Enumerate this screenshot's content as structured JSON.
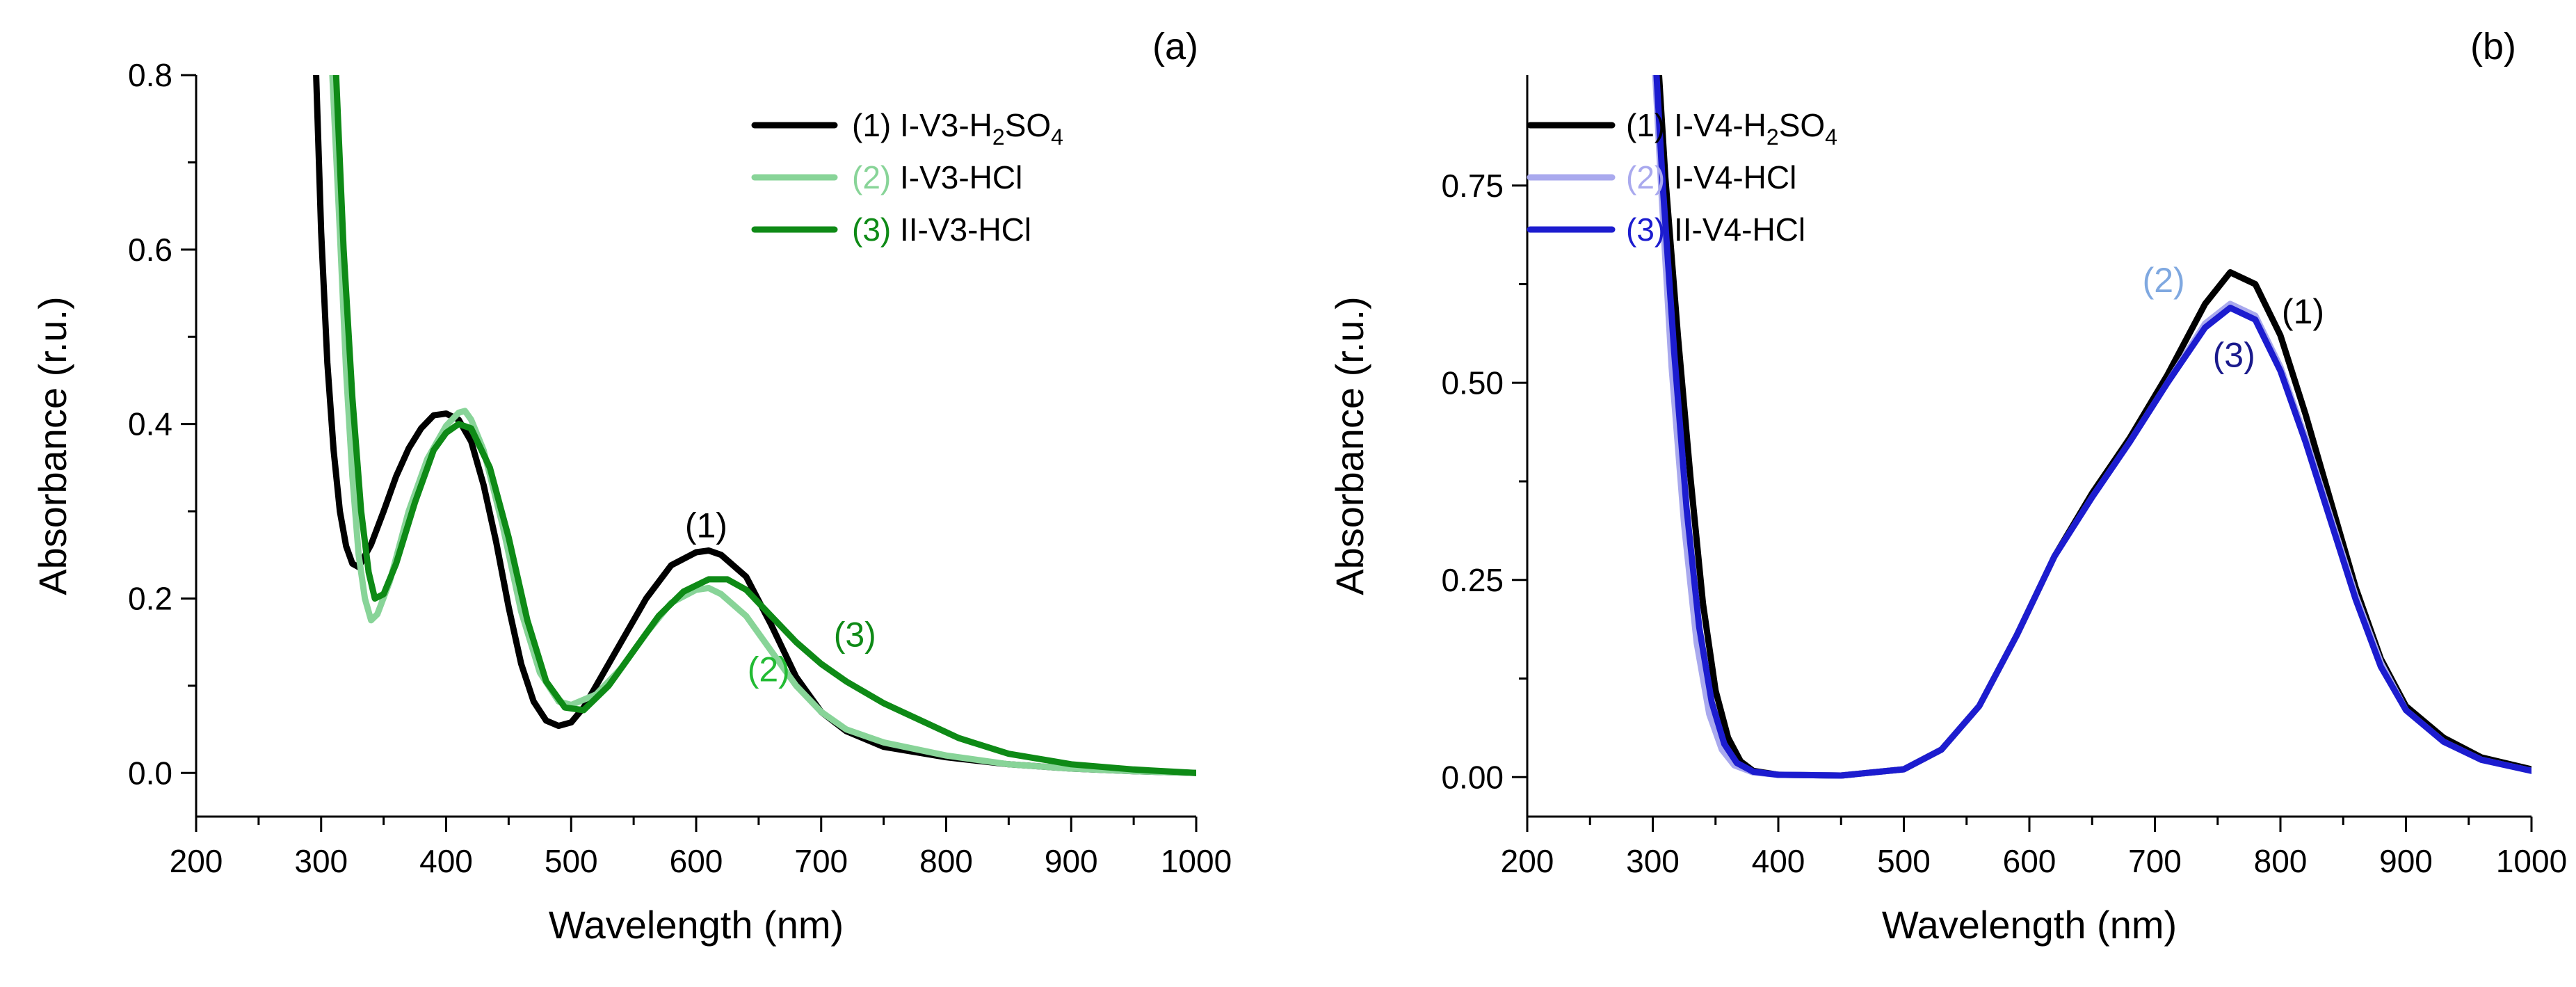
{
  "chart_data": [
    {
      "type": "line",
      "panel_label": "(a)",
      "xlabel": "Wavelength (nm)",
      "ylabel": "Absorbance (r.u.)",
      "xlim": [
        200,
        1000
      ],
      "ylim": [
        -0.05,
        0.8
      ],
      "x_ticks": [
        200,
        300,
        400,
        500,
        600,
        700,
        800,
        900,
        1000
      ],
      "y_ticks": [
        {
          "value": 0.0,
          "label": "0.0"
        },
        {
          "value": 0.2,
          "label": "0.2"
        },
        {
          "value": 0.4,
          "label": "0.4"
        },
        {
          "value": 0.6,
          "label": "0.6"
        },
        {
          "value": 0.8,
          "label": "0.8"
        }
      ],
      "legend_position": "top-right",
      "series": [
        {
          "name": "(1) I-V3-H2SO4",
          "legend_num": "(1)",
          "legend_prefix": "I-V3-H",
          "legend_sub1": "2",
          "legend_mid": "SO",
          "legend_sub2": "4",
          "color": "#000000",
          "points": [
            [
              296,
              0.8
            ],
            [
              300,
              0.62
            ],
            [
              305,
              0.47
            ],
            [
              310,
              0.37
            ],
            [
              315,
              0.3
            ],
            [
              320,
              0.26
            ],
            [
              325,
              0.24
            ],
            [
              330,
              0.236
            ],
            [
              340,
              0.262
            ],
            [
              350,
              0.3
            ],
            [
              360,
              0.34
            ],
            [
              370,
              0.372
            ],
            [
              380,
              0.395
            ],
            [
              390,
              0.41
            ],
            [
              400,
              0.412
            ],
            [
              410,
              0.405
            ],
            [
              420,
              0.38
            ],
            [
              430,
              0.33
            ],
            [
              440,
              0.265
            ],
            [
              450,
              0.19
            ],
            [
              460,
              0.125
            ],
            [
              470,
              0.082
            ],
            [
              480,
              0.06
            ],
            [
              490,
              0.054
            ],
            [
              500,
              0.058
            ],
            [
              510,
              0.075
            ],
            [
              520,
              0.1
            ],
            [
              540,
              0.15
            ],
            [
              560,
              0.2
            ],
            [
              580,
              0.238
            ],
            [
              600,
              0.253
            ],
            [
              610,
              0.255
            ],
            [
              620,
              0.25
            ],
            [
              640,
              0.225
            ],
            [
              660,
              0.17
            ],
            [
              680,
              0.11
            ],
            [
              700,
              0.07
            ],
            [
              720,
              0.048
            ],
            [
              750,
              0.03
            ],
            [
              800,
              0.018
            ],
            [
              850,
              0.01
            ],
            [
              900,
              0.005
            ],
            [
              950,
              0.002
            ],
            [
              1000,
              0.0
            ]
          ]
        },
        {
          "name": "(2) I-V3-HCl",
          "legend_num": "(2)",
          "legend_text": "I-V3-HCl",
          "color": "#88d498",
          "points": [
            [
              309,
              0.8
            ],
            [
              315,
              0.62
            ],
            [
              320,
              0.46
            ],
            [
              325,
              0.34
            ],
            [
              330,
              0.25
            ],
            [
              335,
              0.2
            ],
            [
              340,
              0.175
            ],
            [
              345,
              0.182
            ],
            [
              355,
              0.22
            ],
            [
              370,
              0.3
            ],
            [
              385,
              0.36
            ],
            [
              400,
              0.398
            ],
            [
              410,
              0.413
            ],
            [
              415,
              0.415
            ],
            [
              420,
              0.405
            ],
            [
              430,
              0.37
            ],
            [
              445,
              0.285
            ],
            [
              460,
              0.185
            ],
            [
              475,
              0.115
            ],
            [
              490,
              0.082
            ],
            [
              500,
              0.078
            ],
            [
              520,
              0.09
            ],
            [
              540,
              0.12
            ],
            [
              560,
              0.16
            ],
            [
              580,
              0.195
            ],
            [
              600,
              0.21
            ],
            [
              610,
              0.212
            ],
            [
              620,
              0.205
            ],
            [
              640,
              0.18
            ],
            [
              660,
              0.14
            ],
            [
              680,
              0.1
            ],
            [
              700,
              0.07
            ],
            [
              720,
              0.05
            ],
            [
              750,
              0.035
            ],
            [
              800,
              0.02
            ],
            [
              850,
              0.01
            ],
            [
              900,
              0.005
            ],
            [
              950,
              0.002
            ],
            [
              1000,
              0.0
            ]
          ]
        },
        {
          "name": "(3) II-V3-HCl",
          "legend_num": "(3)",
          "legend_text": "II-V3-HCl",
          "color": "#0e8a16",
          "points": [
            [
              312,
              0.8
            ],
            [
              318,
              0.6
            ],
            [
              325,
              0.43
            ],
            [
              332,
              0.3
            ],
            [
              338,
              0.23
            ],
            [
              343,
              0.2
            ],
            [
              350,
              0.205
            ],
            [
              360,
              0.24
            ],
            [
              375,
              0.31
            ],
            [
              390,
              0.37
            ],
            [
              400,
              0.39
            ],
            [
              410,
              0.4
            ],
            [
              420,
              0.395
            ],
            [
              435,
              0.35
            ],
            [
              450,
              0.27
            ],
            [
              465,
              0.175
            ],
            [
              480,
              0.105
            ],
            [
              495,
              0.075
            ],
            [
              510,
              0.072
            ],
            [
              530,
              0.1
            ],
            [
              550,
              0.14
            ],
            [
              570,
              0.18
            ],
            [
              590,
              0.208
            ],
            [
              610,
              0.222
            ],
            [
              625,
              0.222
            ],
            [
              640,
              0.21
            ],
            [
              660,
              0.18
            ],
            [
              680,
              0.15
            ],
            [
              700,
              0.125
            ],
            [
              720,
              0.105
            ],
            [
              750,
              0.08
            ],
            [
              780,
              0.06
            ],
            [
              810,
              0.04
            ],
            [
              850,
              0.022
            ],
            [
              900,
              0.01
            ],
            [
              950,
              0.004
            ],
            [
              1000,
              0.0
            ]
          ]
        }
      ],
      "annotations": [
        {
          "text": "(1)",
          "x": 608,
          "y": 0.27,
          "color": "#000000"
        },
        {
          "text": "(2)",
          "x": 658,
          "y": 0.105,
          "color": "#22bb33"
        },
        {
          "text": "(3)",
          "x": 727,
          "y": 0.145,
          "color": "#0e8a16"
        }
      ]
    },
    {
      "type": "line",
      "panel_label": "(b)",
      "xlabel": "Wavelength (nm)",
      "ylabel": "Absorbance (r.u.)",
      "xlim": [
        200,
        1000
      ],
      "ylim": [
        -0.05,
        0.89
      ],
      "x_ticks": [
        200,
        300,
        400,
        500,
        600,
        700,
        800,
        900,
        1000
      ],
      "y_ticks": [
        {
          "value": 0.0,
          "label": "0.00"
        },
        {
          "value": 0.25,
          "label": "0.25"
        },
        {
          "value": 0.5,
          "label": "0.50"
        },
        {
          "value": 0.75,
          "label": "0.75"
        }
      ],
      "legend_position": "top-left",
      "series": [
        {
          "name": "(1) I-V4-H2SO4",
          "legend_num": "(1)",
          "legend_prefix": "I-V4-H",
          "legend_sub1": "2",
          "legend_mid": "SO",
          "legend_sub2": "4",
          "color": "#000000",
          "points": [
            [
              305,
              0.89
            ],
            [
              310,
              0.76
            ],
            [
              320,
              0.56
            ],
            [
              330,
              0.38
            ],
            [
              340,
              0.22
            ],
            [
              350,
              0.11
            ],
            [
              360,
              0.05
            ],
            [
              370,
              0.02
            ],
            [
              380,
              0.008
            ],
            [
              400,
              0.003
            ],
            [
              450,
              0.002
            ],
            [
              500,
              0.01
            ],
            [
              530,
              0.035
            ],
            [
              560,
              0.09
            ],
            [
              590,
              0.18
            ],
            [
              620,
              0.28
            ],
            [
              650,
              0.36
            ],
            [
              680,
              0.43
            ],
            [
              710,
              0.51
            ],
            [
              740,
              0.6
            ],
            [
              760,
              0.64
            ],
            [
              780,
              0.625
            ],
            [
              800,
              0.56
            ],
            [
              820,
              0.46
            ],
            [
              840,
              0.35
            ],
            [
              860,
              0.24
            ],
            [
              880,
              0.15
            ],
            [
              900,
              0.09
            ],
            [
              930,
              0.05
            ],
            [
              960,
              0.025
            ],
            [
              1000,
              0.01
            ]
          ]
        },
        {
          "name": "(2) I-V4-HCl",
          "legend_num": "(2)",
          "legend_text": "I-V4-HCl",
          "color": "#a9a9ee",
          "points": [
            [
              302,
              0.89
            ],
            [
              307,
              0.74
            ],
            [
              315,
              0.52
            ],
            [
              325,
              0.32
            ],
            [
              335,
              0.17
            ],
            [
              345,
              0.08
            ],
            [
              355,
              0.035
            ],
            [
              365,
              0.015
            ],
            [
              380,
              0.006
            ],
            [
              400,
              0.003
            ],
            [
              450,
              0.002
            ],
            [
              500,
              0.01
            ],
            [
              530,
              0.035
            ],
            [
              560,
              0.09
            ],
            [
              590,
              0.18
            ],
            [
              620,
              0.28
            ],
            [
              650,
              0.355
            ],
            [
              680,
              0.425
            ],
            [
              710,
              0.5
            ],
            [
              740,
              0.575
            ],
            [
              760,
              0.6
            ],
            [
              780,
              0.585
            ],
            [
              800,
              0.52
            ],
            [
              820,
              0.43
            ],
            [
              840,
              0.33
            ],
            [
              860,
              0.23
            ],
            [
              880,
              0.145
            ],
            [
              900,
              0.085
            ],
            [
              930,
              0.045
            ],
            [
              960,
              0.022
            ],
            [
              1000,
              0.008
            ]
          ]
        },
        {
          "name": "(3) II-V4-HCl",
          "legend_num": "(3)",
          "legend_text": "II-V4-HCl",
          "color": "#1c1ccf",
          "points": [
            [
              303,
              0.89
            ],
            [
              308,
              0.75
            ],
            [
              317,
              0.54
            ],
            [
              327,
              0.34
            ],
            [
              337,
              0.19
            ],
            [
              347,
              0.095
            ],
            [
              357,
              0.042
            ],
            [
              367,
              0.018
            ],
            [
              380,
              0.007
            ],
            [
              400,
              0.003
            ],
            [
              450,
              0.002
            ],
            [
              500,
              0.01
            ],
            [
              530,
              0.035
            ],
            [
              560,
              0.09
            ],
            [
              590,
              0.18
            ],
            [
              620,
              0.28
            ],
            [
              650,
              0.355
            ],
            [
              680,
              0.425
            ],
            [
              710,
              0.5
            ],
            [
              740,
              0.57
            ],
            [
              760,
              0.595
            ],
            [
              780,
              0.58
            ],
            [
              800,
              0.515
            ],
            [
              820,
              0.425
            ],
            [
              840,
              0.325
            ],
            [
              860,
              0.225
            ],
            [
              880,
              0.14
            ],
            [
              900,
              0.085
            ],
            [
              930,
              0.045
            ],
            [
              960,
              0.022
            ],
            [
              1000,
              0.008
            ]
          ]
        }
      ],
      "annotations": [
        {
          "text": "(2)",
          "x": 707,
          "y": 0.615,
          "color": "#7fa8e0"
        },
        {
          "text": "(1)",
          "x": 818,
          "y": 0.575,
          "color": "#000000"
        },
        {
          "text": "(3)",
          "x": 763,
          "y": 0.52,
          "color": "#1a1a8c"
        }
      ]
    }
  ]
}
